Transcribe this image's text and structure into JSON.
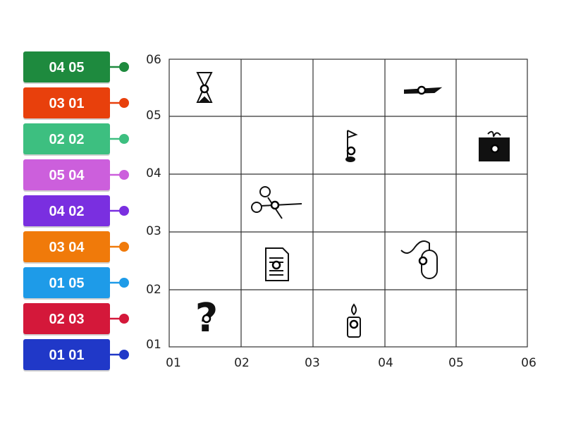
{
  "labels": [
    {
      "text": "04 05",
      "color": "#1e8a3e"
    },
    {
      "text": "03 01",
      "color": "#e8400c"
    },
    {
      "text": "02 02",
      "color": "#3dbf80"
    },
    {
      "text": "05 04",
      "color": "#cc5fdc"
    },
    {
      "text": "04 02",
      "color": "#7a2fe0"
    },
    {
      "text": "03 04",
      "color": "#f07a0a"
    },
    {
      "text": "01 05",
      "color": "#1e9be8"
    },
    {
      "text": "02 03",
      "color": "#d4183a"
    },
    {
      "text": "01 01",
      "color": "#2038c8"
    }
  ],
  "grid": {
    "x_labels": [
      "01",
      "02",
      "03",
      "04",
      "05",
      "06"
    ],
    "y_labels": [
      "01",
      "02",
      "03",
      "04",
      "05",
      "06"
    ]
  }
}
